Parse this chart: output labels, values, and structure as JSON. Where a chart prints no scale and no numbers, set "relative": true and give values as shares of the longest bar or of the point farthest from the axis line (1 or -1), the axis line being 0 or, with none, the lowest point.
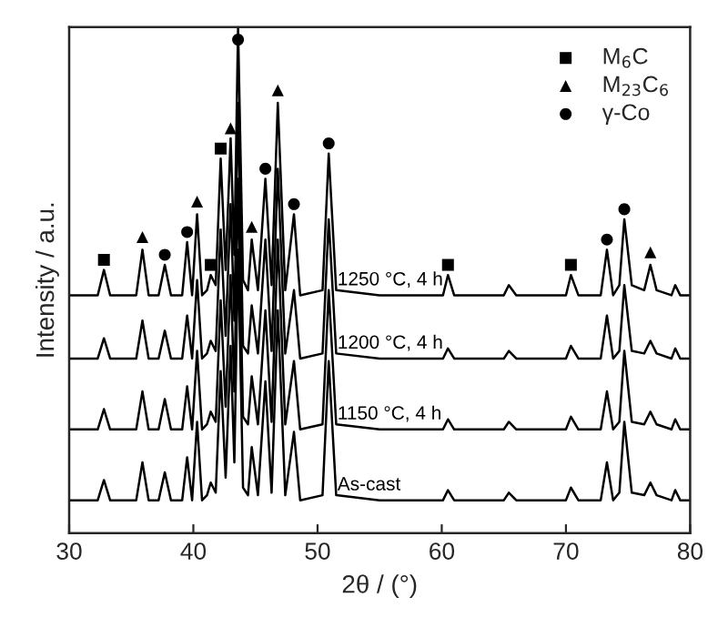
{
  "chart_data": {
    "type": "line",
    "relative": true,
    "xlabel": "2θ / (°)",
    "ylabel": "Intensity / a.u.",
    "xlim": [
      30,
      80
    ],
    "xticks": [
      30,
      40,
      50,
      60,
      70,
      80
    ],
    "tick_labels": "x",
    "legend": "top right",
    "grid": false,
    "x": [
      30,
      32.3,
      32.8,
      33.3,
      35.4,
      35.9,
      36.4,
      37.2,
      37.7,
      38.2,
      39.1,
      39.5,
      39.9,
      40.3,
      40.7,
      41.1,
      41.4,
      41.8,
      42.2,
      42.6,
      43.0,
      43.3,
      43.6,
      44.0,
      44.4,
      44.7,
      45.2,
      45.8,
      46.3,
      46.8,
      47.4,
      48.1,
      48.6,
      50.4,
      50.9,
      51.5,
      55,
      60.1,
      60.5,
      61,
      65,
      65.4,
      66,
      70,
      70.4,
      71,
      72.8,
      73.3,
      73.8,
      74.3,
      74.7,
      75.3,
      76.3,
      76.8,
      77.3,
      78.5,
      78.8,
      79.2,
      80
    ],
    "series": [
      {
        "name": "1250 °C, 4 h",
        "color": "#000000",
        "values": [
          0.47,
          0.47,
          0.52,
          0.47,
          0.47,
          0.56,
          0.47,
          0.47,
          0.53,
          0.47,
          0.47,
          0.575,
          0.47,
          0.63,
          0.47,
          0.48,
          0.51,
          0.49,
          0.74,
          0.52,
          0.78,
          0.55,
          1.0,
          0.5,
          0.48,
          0.58,
          0.48,
          0.7,
          0.49,
          0.85,
          0.48,
          0.63,
          0.47,
          0.48,
          0.75,
          0.48,
          0.47,
          0.47,
          0.51,
          0.47,
          0.47,
          0.49,
          0.47,
          0.47,
          0.51,
          0.47,
          0.47,
          0.56,
          0.47,
          0.49,
          0.62,
          0.49,
          0.48,
          0.53,
          0.48,
          0.47,
          0.49,
          0.47,
          0.47
        ]
      },
      {
        "name": "1200 °C, 4 h",
        "color": "#000000",
        "values": [
          0.345,
          0.345,
          0.385,
          0.345,
          0.345,
          0.42,
          0.345,
          0.345,
          0.4,
          0.345,
          0.345,
          0.43,
          0.345,
          0.5,
          0.345,
          0.355,
          0.38,
          0.36,
          0.6,
          0.39,
          0.65,
          0.42,
          0.85,
          0.37,
          0.355,
          0.45,
          0.355,
          0.58,
          0.36,
          0.72,
          0.355,
          0.48,
          0.345,
          0.355,
          0.62,
          0.355,
          0.345,
          0.345,
          0.365,
          0.345,
          0.345,
          0.36,
          0.345,
          0.345,
          0.37,
          0.345,
          0.345,
          0.43,
          0.345,
          0.36,
          0.49,
          0.36,
          0.355,
          0.38,
          0.355,
          0.345,
          0.365,
          0.345,
          0.345
        ]
      },
      {
        "name": "1150 °C, 4 h",
        "color": "#000000",
        "values": [
          0.205,
          0.205,
          0.245,
          0.205,
          0.205,
          0.28,
          0.205,
          0.205,
          0.265,
          0.205,
          0.205,
          0.29,
          0.205,
          0.36,
          0.205,
          0.215,
          0.24,
          0.22,
          0.46,
          0.25,
          0.51,
          0.28,
          0.7,
          0.23,
          0.215,
          0.31,
          0.215,
          0.44,
          0.22,
          0.58,
          0.215,
          0.34,
          0.205,
          0.215,
          0.48,
          0.215,
          0.205,
          0.205,
          0.225,
          0.205,
          0.205,
          0.22,
          0.205,
          0.205,
          0.23,
          0.205,
          0.205,
          0.28,
          0.205,
          0.22,
          0.36,
          0.22,
          0.215,
          0.24,
          0.215,
          0.205,
          0.225,
          0.205,
          0.205
        ]
      },
      {
        "name": "As-cast",
        "color": "#000000",
        "values": [
          0.065,
          0.065,
          0.105,
          0.065,
          0.065,
          0.14,
          0.065,
          0.065,
          0.12,
          0.065,
          0.065,
          0.15,
          0.065,
          0.22,
          0.065,
          0.075,
          0.1,
          0.08,
          0.32,
          0.11,
          0.37,
          0.14,
          0.56,
          0.09,
          0.075,
          0.17,
          0.075,
          0.3,
          0.08,
          0.44,
          0.075,
          0.2,
          0.065,
          0.075,
          0.34,
          0.075,
          0.065,
          0.065,
          0.085,
          0.065,
          0.065,
          0.08,
          0.065,
          0.065,
          0.09,
          0.065,
          0.065,
          0.14,
          0.065,
          0.08,
          0.22,
          0.08,
          0.075,
          0.1,
          0.075,
          0.065,
          0.085,
          0.065,
          0.065
        ]
      },
      {
        "name": "M$_{6}$C",
        "type": "scatter",
        "marker": "square",
        "color": "#000000",
        "x": [
          32.8,
          41.4,
          42.2,
          60.5,
          70.4
        ],
        "values": [
          0.54,
          0.53,
          0.76,
          0.53,
          0.53
        ]
      },
      {
        "name": "M$_{23}$C$_{6}$",
        "type": "scatter",
        "marker": "triangle",
        "color": "#000000",
        "x": [
          35.9,
          40.3,
          43.0,
          44.7,
          46.8,
          76.8
        ],
        "values": [
          0.585,
          0.655,
          0.8,
          0.605,
          0.875,
          0.555
        ]
      },
      {
        "name": "γ-Co",
        "type": "scatter",
        "marker": "circle",
        "color": "#000000",
        "x": [
          37.7,
          39.5,
          43.6,
          45.8,
          48.1,
          50.9,
          73.3,
          74.7
        ],
        "values": [
          0.55,
          0.595,
          0.975,
          0.72,
          0.65,
          0.77,
          0.58,
          0.64
        ]
      }
    ]
  }
}
